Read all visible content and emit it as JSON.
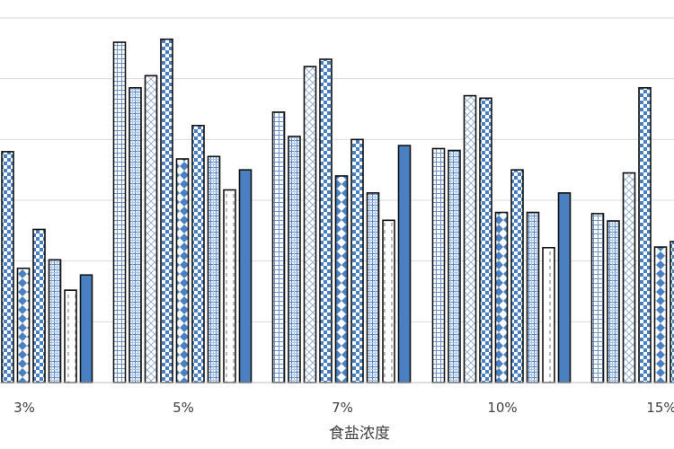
{
  "chart_data": {
    "type": "bar",
    "title": "",
    "xlabel": "食盐浓度",
    "ylabel": "",
    "categories": [
      "3%",
      "5%",
      "7%",
      "10%",
      "15%"
    ],
    "ylim": [
      0,
      6
    ],
    "grid": true,
    "legend": "none",
    "series": [
      {
        "values": [
          null,
          5.6,
          4.45,
          3.85,
          2.78
        ],
        "pattern": "grid"
      },
      {
        "values": [
          null,
          4.85,
          4.05,
          3.82,
          2.66
        ],
        "pattern": "plaid"
      },
      {
        "values": [
          null,
          5.05,
          5.2,
          4.72,
          3.45
        ],
        "pattern": "diamond"
      },
      {
        "values": [
          3.8,
          5.65,
          5.32,
          4.68,
          4.85
        ],
        "pattern": "checker-blue"
      },
      {
        "values": [
          1.88,
          3.68,
          3.4,
          2.8,
          2.23
        ],
        "pattern": "diamond-blue"
      },
      {
        "values": [
          2.52,
          4.23,
          4.0,
          3.5,
          2.32
        ],
        "pattern": "checker-blue"
      },
      {
        "values": [
          2.02,
          3.72,
          3.12,
          2.8,
          0
        ],
        "pattern": "plaid"
      },
      {
        "values": [
          1.52,
          3.17,
          2.67,
          2.22,
          0
        ],
        "pattern": "dashed"
      },
      {
        "values": [
          1.77,
          3.5,
          3.9,
          3.12,
          0
        ],
        "pattern": "solid-blue"
      }
    ]
  },
  "colors": {
    "accent_blue": "#4a7fc1",
    "light_blue": "#a9c4e6",
    "bar_outline": "#111111",
    "grid": "#d9d9d9",
    "axis_text": "#404040"
  }
}
